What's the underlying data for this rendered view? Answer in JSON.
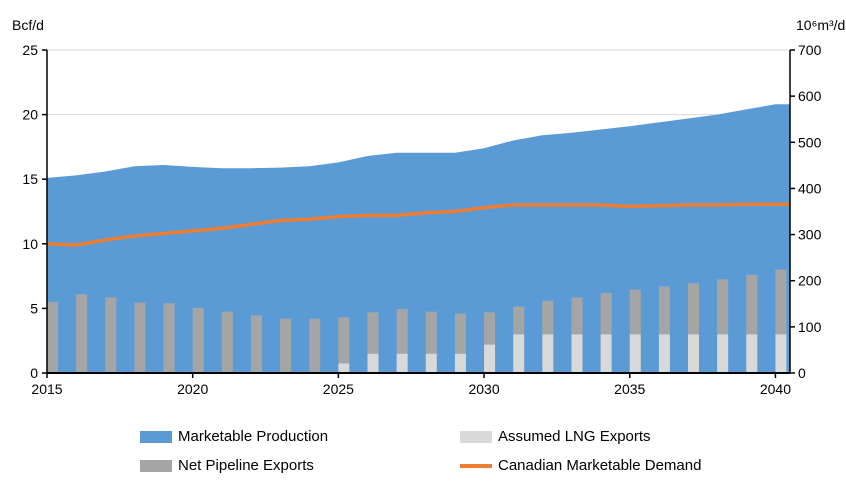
{
  "chart_data": {
    "type": "area+bar+line",
    "ylabel_left": "Bcf/d",
    "ylabel_right": "10⁶m³/d",
    "ylim_left": [
      0,
      25
    ],
    "ylim_right": [
      0,
      700
    ],
    "yticks_left": [
      "0",
      "5",
      "10",
      "15",
      "20",
      "25"
    ],
    "yticks_right": [
      "0",
      "100",
      "200",
      "300",
      "400",
      "500",
      "600",
      "700"
    ],
    "xlim": [
      2015,
      2040
    ],
    "xticks": [
      "2015",
      "2020",
      "2025",
      "2030",
      "2035",
      "2040"
    ],
    "x": [
      2015,
      2016,
      2017,
      2018,
      2019,
      2020,
      2021,
      2022,
      2023,
      2024,
      2025,
      2026,
      2027,
      2028,
      2029,
      2030,
      2031,
      2032,
      2033,
      2034,
      2035,
      2036,
      2037,
      2038,
      2039,
      2040
    ],
    "grid": "horizontal",
    "legend_position": "bottom",
    "series": [
      {
        "name": "Marketable Production",
        "type": "area",
        "color": "#5B9BD5",
        "values": [
          15.1,
          15.3,
          15.6,
          16.0,
          16.1,
          15.95,
          15.85,
          15.85,
          15.9,
          16.0,
          16.3,
          16.8,
          17.05,
          17.05,
          17.05,
          17.4,
          18.0,
          18.4,
          18.6,
          18.85,
          19.1,
          19.4,
          19.7,
          20.0,
          20.4,
          20.8
        ]
      },
      {
        "name": "Assumed LNG Exports",
        "type": "stacked-bar",
        "color": "#D9D9D9",
        "values": [
          0,
          0,
          0,
          0,
          0,
          0,
          0,
          0,
          0,
          0,
          0.75,
          1.5,
          1.5,
          1.5,
          1.5,
          2.2,
          3.0,
          3.0,
          3.0,
          3.0,
          3.0,
          3.0,
          3.0,
          3.0,
          3.0,
          3.0
        ]
      },
      {
        "name": "Net Pipeline Exports",
        "type": "stacked-bar",
        "color": "#A5A5A5",
        "values": [
          5.5,
          6.1,
          5.85,
          5.45,
          5.4,
          5.05,
          4.75,
          4.45,
          4.2,
          4.2,
          3.55,
          3.2,
          3.45,
          3.25,
          3.1,
          2.5,
          2.15,
          2.6,
          2.85,
          3.2,
          3.45,
          3.7,
          3.95,
          4.25,
          4.6,
          5.0
        ]
      },
      {
        "name": "Canadian Marketable Demand",
        "type": "line",
        "color": "#ED7D31",
        "values": [
          10.0,
          9.9,
          10.3,
          10.6,
          10.8,
          11.0,
          11.2,
          11.5,
          11.8,
          11.9,
          12.1,
          12.2,
          12.2,
          12.4,
          12.5,
          12.8,
          13.0,
          13.0,
          13.0,
          13.0,
          12.9,
          12.95,
          13.0,
          13.0,
          13.05,
          13.05
        ]
      }
    ]
  }
}
